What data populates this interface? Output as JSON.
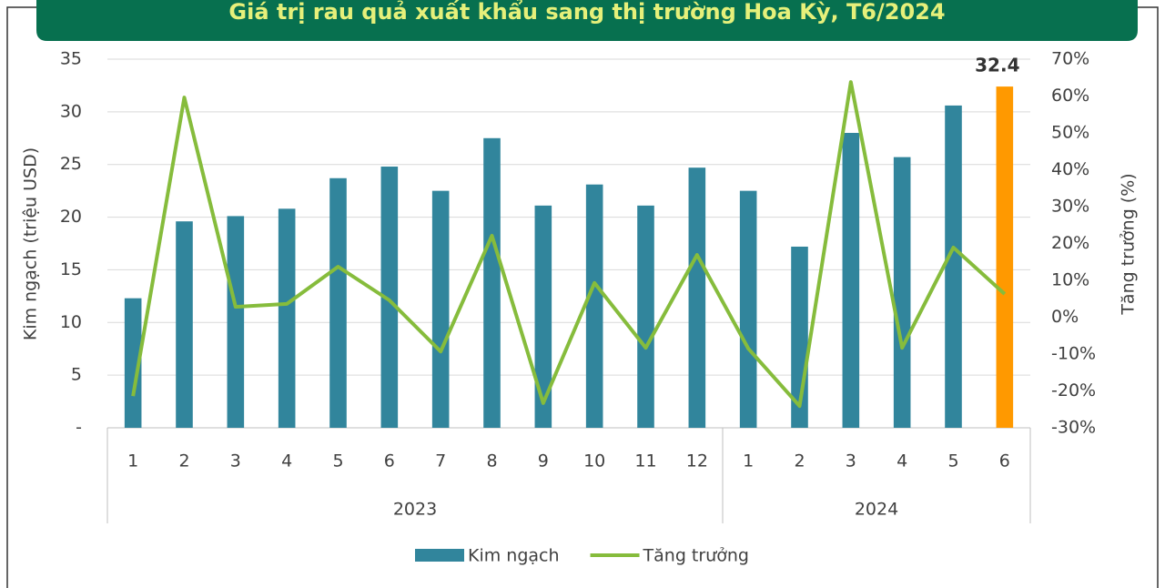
{
  "chart_data": {
    "type": "bar_line",
    "title": "Giá trị rau quả xuất khẩu sang thị trường Hoa Kỳ, T6/2024",
    "category_groups": [
      {
        "label": "2023",
        "categories": [
          "1",
          "2",
          "3",
          "4",
          "5",
          "6",
          "7",
          "8",
          "9",
          "10",
          "11",
          "12"
        ]
      },
      {
        "label": "2024",
        "categories": [
          "1",
          "2",
          "3",
          "4",
          "5",
          "6"
        ]
      }
    ],
    "series": [
      {
        "name": "Kim ngạch",
        "type": "bar",
        "color": "#31859c",
        "colors": [
          "#31859c",
          "#31859c",
          "#31859c",
          "#31859c",
          "#31859c",
          "#31859c",
          "#31859c",
          "#31859c",
          "#31859c",
          "#31859c",
          "#31859c",
          "#31859c",
          "#31859c",
          "#31859c",
          "#31859c",
          "#31859c",
          "#31859c",
          "#ff9900"
        ],
        "values": [
          12.3,
          19.6,
          20.1,
          20.8,
          23.7,
          24.8,
          22.5,
          27.5,
          21.1,
          23.1,
          21.1,
          24.7,
          22.5,
          17.2,
          28.0,
          25.7,
          30.6,
          32.4
        ],
        "value_labels": [
          null,
          null,
          null,
          null,
          null,
          null,
          null,
          null,
          null,
          null,
          null,
          null,
          null,
          null,
          null,
          null,
          null,
          "32.4"
        ]
      },
      {
        "name": "Tăng trưởng",
        "type": "line",
        "axis": "y2",
        "color": "#86bc3c",
        "values": [
          -21.4,
          59.6,
          2.8,
          3.6,
          13.7,
          4.6,
          -9.3,
          22.1,
          -23.3,
          9.3,
          -8.3,
          16.9,
          -8.5,
          -24.1,
          63.8,
          -8.3,
          18.9,
          6.3
        ]
      }
    ],
    "y_label": "Kim ngạch (triệu USD)",
    "y2_label": "Tăng trưởng (%)",
    "ylim": [
      0,
      35
    ],
    "yticks": [
      {
        "value": 0,
        "label": "-"
      },
      5,
      10,
      15,
      20,
      25,
      30,
      35
    ],
    "y2lim": [
      -30,
      70
    ],
    "y2ticks": [
      {
        "value": -30,
        "label": "-30%"
      },
      {
        "value": -20,
        "label": "-20%"
      },
      {
        "value": -10,
        "label": "-10%"
      },
      {
        "value": 0,
        "label": "0%"
      },
      {
        "value": 10,
        "label": "10%"
      },
      {
        "value": 20,
        "label": "20%"
      },
      {
        "value": 30,
        "label": "30%"
      },
      {
        "value": 40,
        "label": "40%"
      },
      {
        "value": 50,
        "label": "50%"
      },
      {
        "value": 60,
        "label": "60%"
      },
      {
        "value": 70,
        "label": "70%"
      }
    ],
    "grid": true,
    "legend": "bottom"
  }
}
